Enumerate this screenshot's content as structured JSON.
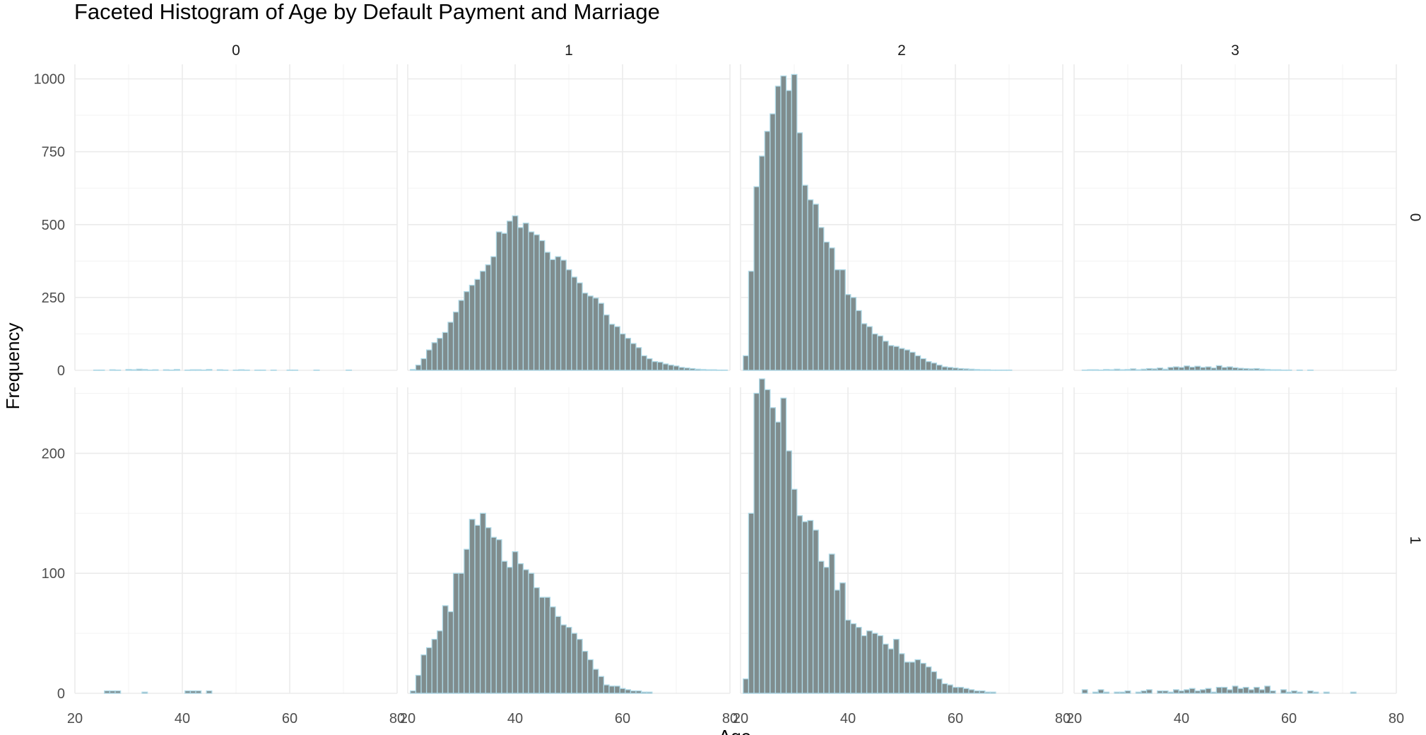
{
  "chart_data": {
    "type": "bar",
    "subtype": "faceted-histogram",
    "title": "Faceted Histogram of Age by Default Payment and Marriage",
    "xlabel": "Age",
    "ylabel": "Frequency",
    "bin_width": 1,
    "x_range": [
      20,
      80
    ],
    "x_ticks": [
      20,
      40,
      60,
      80
    ],
    "column_facet_labels": [
      "0",
      "1",
      "2",
      "3"
    ],
    "row_facet_labels": [
      "0",
      "1"
    ],
    "colors": {
      "bar_fill": "#7f8c8d",
      "bar_outline": "#add8e6",
      "grid": "#ebebeb"
    },
    "rows": [
      {
        "label": "0",
        "y_range": [
          0,
          1050
        ],
        "y_ticks": [
          0,
          250,
          500,
          750,
          1000
        ],
        "panels": [
          {
            "facet": "0",
            "start_age": 21,
            "values": [
              0,
              0,
              0,
              1,
              1,
              0,
              2,
              1,
              0,
              3,
              2,
              4,
              3,
              1,
              2,
              0,
              2,
              1,
              3,
              0,
              1,
              2,
              2,
              1,
              3,
              0,
              2,
              1,
              0,
              1,
              2,
              1,
              0,
              1,
              1,
              0,
              1,
              0,
              0,
              1,
              1,
              0,
              0,
              0,
              1,
              0,
              0,
              0,
              0,
              0,
              1,
              0,
              0,
              0,
              0,
              0,
              0,
              0,
              0
            ]
          },
          {
            "facet": "1",
            "start_age": 21,
            "values": [
              3,
              18,
              40,
              70,
              95,
              110,
              130,
              165,
              200,
              240,
              270,
              292,
              312,
              340,
              362,
              390,
              475,
              470,
              512,
              530,
              490,
              505,
              475,
              465,
              445,
              405,
              380,
              390,
              378,
              345,
              320,
              300,
              265,
              255,
              248,
              230,
              190,
              158,
              150,
              125,
              110,
              92,
              78,
              50,
              40,
              30,
              28,
              22,
              18,
              15,
              10,
              8,
              6,
              4,
              3,
              2,
              2,
              1,
              1
            ]
          },
          {
            "facet": "2",
            "start_age": 21,
            "values": [
              50,
              340,
              630,
              735,
              820,
              880,
              975,
              1010,
              960,
              1015,
              815,
              635,
              585,
              570,
              490,
              440,
              420,
              345,
              345,
              260,
              250,
              205,
              160,
              150,
              125,
              118,
              100,
              85,
              82,
              75,
              70,
              62,
              50,
              40,
              30,
              25,
              18,
              12,
              10,
              8,
              6,
              5,
              4,
              3,
              2,
              2,
              1,
              1,
              1,
              1,
              0,
              0,
              0,
              0,
              0,
              0,
              0,
              0,
              0
            ]
          },
          {
            "facet": "3",
            "start_age": 21,
            "values": [
              0,
              1,
              2,
              2,
              1,
              3,
              2,
              4,
              2,
              3,
              5,
              2,
              4,
              6,
              5,
              8,
              4,
              10,
              12,
              10,
              15,
              11,
              14,
              10,
              12,
              8,
              16,
              10,
              12,
              9,
              7,
              6,
              5,
              6,
              4,
              3,
              2,
              2,
              1,
              1,
              0,
              1,
              0,
              1,
              0,
              0,
              0,
              0,
              0,
              0,
              0,
              0,
              0,
              0,
              0,
              0,
              0,
              0,
              0
            ]
          }
        ]
      },
      {
        "label": "1",
        "y_range": [
          0,
          255
        ],
        "y_ticks": [
          0,
          100,
          200
        ],
        "panels": [
          {
            "facet": "0",
            "start_age": 21,
            "values": [
              0,
              0,
              0,
              0,
              0,
              2,
              2,
              2,
              0,
              0,
              0,
              0,
              1,
              0,
              0,
              0,
              0,
              0,
              0,
              0,
              2,
              2,
              2,
              0,
              2,
              0,
              0,
              0,
              0,
              0,
              0,
              0,
              0,
              0,
              0,
              0,
              0,
              0,
              0,
              0,
              0,
              0,
              0,
              0,
              0,
              0,
              0,
              0,
              0,
              0,
              0,
              0,
              0,
              0,
              0,
              0,
              0,
              0,
              0
            ]
          },
          {
            "facet": "1",
            "start_age": 21,
            "values": [
              2,
              15,
              32,
              38,
              45,
              52,
              73,
              68,
              100,
              100,
              120,
              145,
              140,
              150,
              138,
              130,
              128,
              110,
              105,
              118,
              108,
              103,
              100,
              88,
              80,
              80,
              72,
              64,
              57,
              55,
              50,
              45,
              35,
              28,
              20,
              14,
              7,
              6,
              6,
              4,
              3,
              2,
              2,
              1,
              1,
              0,
              0,
              0,
              0,
              0,
              0,
              0,
              0,
              0,
              0,
              0,
              0,
              0,
              0
            ]
          },
          {
            "facet": "2",
            "start_age": 21,
            "values": [
              12,
              150,
              250,
              262,
              253,
              238,
              226,
              246,
              202,
              170,
              148,
              143,
              144,
              136,
              110,
              105,
              116,
              86,
              92,
              61,
              58,
              55,
              48,
              52,
              50,
              48,
              41,
              37,
              45,
              33,
              26,
              26,
              28,
              25,
              22,
              18,
              12,
              8,
              7,
              5,
              5,
              4,
              3,
              2,
              2,
              1,
              1,
              0,
              0,
              0,
              0,
              0,
              0,
              0,
              0,
              0,
              0,
              0,
              0
            ]
          },
          {
            "facet": "3",
            "start_age": 21,
            "values": [
              0,
              3,
              0,
              1,
              3,
              1,
              0,
              1,
              1,
              2,
              0,
              1,
              2,
              3,
              0,
              2,
              2,
              1,
              3,
              2,
              3,
              4,
              2,
              3,
              4,
              1,
              5,
              5,
              3,
              6,
              4,
              5,
              3,
              5,
              3,
              6,
              2,
              0,
              3,
              1,
              2,
              1,
              0,
              2,
              1,
              0,
              1,
              0,
              0,
              0,
              0,
              1,
              0,
              0,
              0,
              0,
              0,
              0,
              0
            ]
          }
        ]
      }
    ]
  }
}
